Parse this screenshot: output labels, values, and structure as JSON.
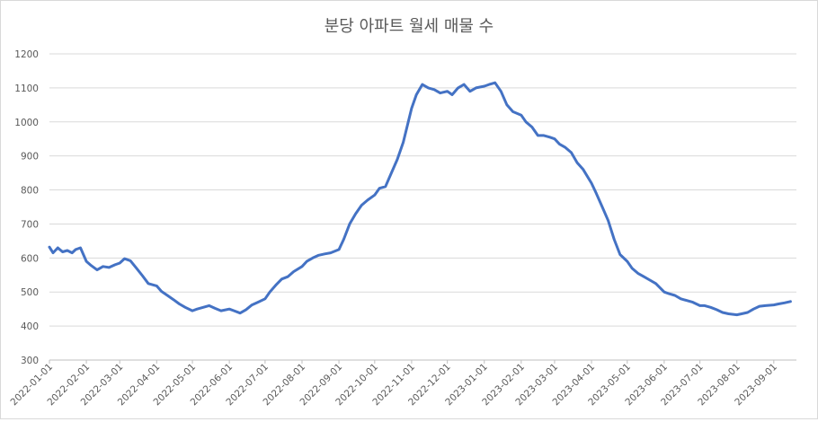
{
  "chart_data": {
    "type": "line",
    "title": "분당 아파트 월세 매물 수",
    "xlabel": "",
    "ylabel": "",
    "ylim": [
      300,
      1200
    ],
    "yticks": [
      "300",
      "400",
      "500",
      "600",
      "700",
      "800",
      "900",
      "1000",
      "1100",
      "1200"
    ],
    "xticks": [
      "2022-01-01",
      "2022-02-01",
      "2022-03-01",
      "2022-04-01",
      "2022-05-01",
      "2022-06-01",
      "2022-07-01",
      "2022-08-01",
      "2022-09-01",
      "2022-10-01",
      "2022-11-01",
      "2022-12-01",
      "2023-01-01",
      "2023-02-01",
      "2023-03-01",
      "2023-04-01",
      "2023-05-01",
      "2023-06-01",
      "2023-07-01",
      "2023-08-01",
      "2023-09-01"
    ],
    "grid": true,
    "legend": "none",
    "series": [
      {
        "color": "#4472c4",
        "x": [
          "2022-01-01",
          "2022-01-04",
          "2022-01-08",
          "2022-01-12",
          "2022-01-16",
          "2022-01-20",
          "2022-01-23",
          "2022-01-27",
          "2022-02-01",
          "2022-02-05",
          "2022-02-10",
          "2022-02-15",
          "2022-02-20",
          "2022-02-25",
          "2022-03-01",
          "2022-03-05",
          "2022-03-10",
          "2022-03-15",
          "2022-03-20",
          "2022-03-25",
          "2022-04-01",
          "2022-04-05",
          "2022-04-10",
          "2022-04-15",
          "2022-04-20",
          "2022-04-25",
          "2022-05-01",
          "2022-05-05",
          "2022-05-10",
          "2022-05-15",
          "2022-05-20",
          "2022-05-25",
          "2022-06-01",
          "2022-06-05",
          "2022-06-10",
          "2022-06-15",
          "2022-06-20",
          "2022-06-25",
          "2022-07-01",
          "2022-07-05",
          "2022-07-10",
          "2022-07-15",
          "2022-07-20",
          "2022-07-25",
          "2022-08-01",
          "2022-08-05",
          "2022-08-10",
          "2022-08-15",
          "2022-08-20",
          "2022-08-25",
          "2022-09-01",
          "2022-09-05",
          "2022-09-10",
          "2022-09-15",
          "2022-09-20",
          "2022-09-25",
          "2022-10-01",
          "2022-10-05",
          "2022-10-10",
          "2022-10-15",
          "2022-10-20",
          "2022-10-25",
          "2022-11-01",
          "2022-11-05",
          "2022-11-10",
          "2022-11-15",
          "2022-11-20",
          "2022-11-25",
          "2022-12-01",
          "2022-12-05",
          "2022-12-10",
          "2022-12-15",
          "2022-12-20",
          "2022-12-25",
          "2023-01-01",
          "2023-01-05",
          "2023-01-10",
          "2023-01-15",
          "2023-01-20",
          "2023-01-25",
          "2023-02-01",
          "2023-02-05",
          "2023-02-10",
          "2023-02-15",
          "2023-02-20",
          "2023-02-25",
          "2023-03-01",
          "2023-03-05",
          "2023-03-10",
          "2023-03-15",
          "2023-03-20",
          "2023-03-25",
          "2023-04-01",
          "2023-04-05",
          "2023-04-10",
          "2023-04-15",
          "2023-04-20",
          "2023-04-25",
          "2023-05-01",
          "2023-05-05",
          "2023-05-10",
          "2023-05-15",
          "2023-05-20",
          "2023-05-25",
          "2023-06-01",
          "2023-06-05",
          "2023-06-10",
          "2023-06-15",
          "2023-06-20",
          "2023-06-25",
          "2023-07-01",
          "2023-07-05",
          "2023-07-10",
          "2023-07-15",
          "2023-07-20",
          "2023-07-25",
          "2023-08-01",
          "2023-08-05",
          "2023-08-10",
          "2023-08-15",
          "2023-08-20",
          "2023-08-25",
          "2023-09-01",
          "2023-09-05",
          "2023-09-10",
          "2023-09-15"
        ],
        "values": [
          632,
          615,
          630,
          618,
          622,
          615,
          625,
          630,
          590,
          578,
          565,
          575,
          572,
          580,
          585,
          598,
          592,
          570,
          548,
          525,
          518,
          502,
          490,
          478,
          465,
          455,
          445,
          450,
          455,
          460,
          452,
          445,
          450,
          445,
          438,
          448,
          462,
          470,
          480,
          500,
          520,
          538,
          545,
          560,
          575,
          590,
          600,
          608,
          612,
          615,
          625,
          655,
          700,
          730,
          755,
          770,
          785,
          805,
          810,
          850,
          890,
          940,
          1040,
          1080,
          1110,
          1100,
          1095,
          1085,
          1090,
          1080,
          1100,
          1110,
          1090,
          1100,
          1105,
          1110,
          1115,
          1090,
          1050,
          1030,
          1020,
          1000,
          985,
          960,
          960,
          955,
          950,
          935,
          925,
          910,
          880,
          860,
          820,
          790,
          750,
          710,
          655,
          610,
          590,
          570,
          555,
          545,
          535,
          525,
          500,
          495,
          490,
          480,
          475,
          470,
          460,
          460,
          455,
          448,
          440,
          436,
          433,
          436,
          440,
          450,
          458,
          460,
          462,
          465,
          468,
          472
        ]
      }
    ]
  }
}
